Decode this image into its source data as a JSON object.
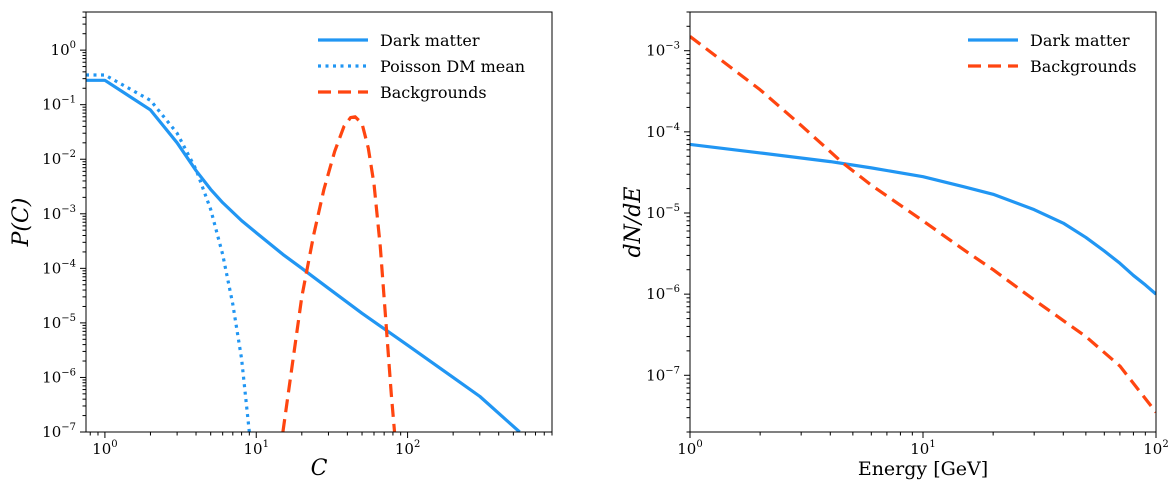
{
  "chart_data": [
    {
      "type": "line",
      "xlabel": "C",
      "ylabel": "P(C)",
      "xscale": "log",
      "yscale": "log",
      "xlim": [
        0.75,
        900
      ],
      "ylim": [
        1e-07,
        5
      ],
      "xticks": [
        {
          "value": 1,
          "base": "10",
          "exp": "0"
        },
        {
          "value": 10,
          "base": "10",
          "exp": "1"
        },
        {
          "value": 100,
          "base": "10",
          "exp": "2"
        }
      ],
      "yticks": [
        {
          "value": 1e-07,
          "base": "10",
          "exp": "−7"
        },
        {
          "value": 1e-06,
          "base": "10",
          "exp": "−6"
        },
        {
          "value": 1e-05,
          "base": "10",
          "exp": "−5"
        },
        {
          "value": 0.0001,
          "base": "10",
          "exp": "−4"
        },
        {
          "value": 0.001,
          "base": "10",
          "exp": "−3"
        },
        {
          "value": 0.01,
          "base": "10",
          "exp": "−2"
        },
        {
          "value": 0.1,
          "base": "10",
          "exp": "−1"
        },
        {
          "value": 1,
          "base": "10",
          "exp": "0"
        }
      ],
      "legend_position": "top-right",
      "series": [
        {
          "name": "Dark matter",
          "color": "#2196f3",
          "style": "solid",
          "x": [
            0.75,
            1,
            2,
            3,
            4,
            5,
            6,
            8,
            10,
            15,
            20,
            30,
            50,
            100,
            200,
            300,
            550
          ],
          "y": [
            0.28,
            0.28,
            0.08,
            0.02,
            0.0062,
            0.0028,
            0.0016,
            0.00075,
            0.00045,
            0.00018,
            0.0001,
            4.3e-05,
            1.5e-05,
            3.9e-06,
            1e-06,
            4.5e-07,
            1e-07
          ]
        },
        {
          "name": "Poisson DM mean",
          "color": "#2196f3",
          "style": "dotted",
          "x": [
            0.75,
            1,
            2,
            3,
            4,
            5,
            6,
            7,
            8,
            9
          ],
          "y": [
            0.35,
            0.35,
            0.12,
            0.03,
            0.0065,
            0.0012,
            0.00018,
            2.2e-05,
            2.2e-06,
            1e-07
          ]
        },
        {
          "name": "Backgrounds",
          "color": "#ff4510",
          "style": "dashed",
          "x": [
            15,
            17,
            20,
            24,
            28,
            33,
            38,
            42,
            45,
            50,
            55,
            60,
            66,
            72,
            78,
            82
          ],
          "y": [
            1e-07,
            1.2e-06,
            3e-05,
            0.00042,
            0.0028,
            0.014,
            0.04,
            0.058,
            0.06,
            0.045,
            0.016,
            0.0035,
            0.00025,
            1e-05,
            5e-07,
            1e-07
          ]
        }
      ]
    },
    {
      "type": "line",
      "xlabel": "Energy  [GeV]",
      "ylabel": "dN/dE",
      "xscale": "log",
      "yscale": "log",
      "xlim": [
        1,
        100
      ],
      "ylim": [
        2e-08,
        0.003
      ],
      "xticks": [
        {
          "value": 1,
          "base": "10",
          "exp": "0"
        },
        {
          "value": 10,
          "base": "10",
          "exp": "1"
        },
        {
          "value": 100,
          "base": "10",
          "exp": "2"
        }
      ],
      "yticks": [
        {
          "value": 1e-07,
          "base": "10",
          "exp": "−7"
        },
        {
          "value": 1e-06,
          "base": "10",
          "exp": "−6"
        },
        {
          "value": 1e-05,
          "base": "10",
          "exp": "−5"
        },
        {
          "value": 0.0001,
          "base": "10",
          "exp": "−4"
        },
        {
          "value": 0.001,
          "base": "10",
          "exp": "−3"
        }
      ],
      "legend_position": "top-right",
      "series": [
        {
          "name": "Dark matter",
          "color": "#2196f3",
          "style": "solid",
          "x": [
            1,
            2,
            4,
            6,
            10,
            15,
            20,
            30,
            40,
            50,
            60,
            70,
            80,
            90,
            100
          ],
          "y": [
            7e-05,
            5.5e-05,
            4.3e-05,
            3.6e-05,
            2.8e-05,
            2.1e-05,
            1.7e-05,
            1.1e-05,
            7.5e-06,
            5e-06,
            3.4e-06,
            2.4e-06,
            1.7e-06,
            1.3e-06,
            1e-06
          ]
        },
        {
          "name": "Backgrounds",
          "color": "#ff4510",
          "style": "dashed",
          "x": [
            1,
            2,
            3,
            4.5,
            6,
            10,
            15,
            20,
            30,
            50,
            70,
            100
          ],
          "y": [
            0.0015,
            0.00033,
            0.00012,
            4.2e-05,
            2.2e-05,
            8e-06,
            3.5e-06,
            2e-06,
            8.5e-07,
            3e-07,
            1.3e-07,
            3.5e-08
          ]
        }
      ]
    }
  ]
}
